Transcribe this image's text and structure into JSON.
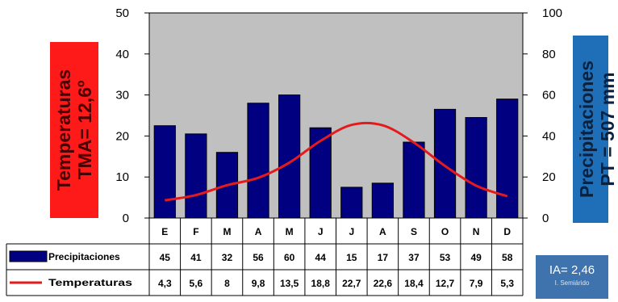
{
  "chart_data": {
    "type": "bar",
    "categories": [
      "E",
      "F",
      "M",
      "A",
      "M",
      "J",
      "J",
      "A",
      "S",
      "O",
      "N",
      "D"
    ],
    "series": [
      {
        "name": "Precipitaciones",
        "kind": "bar",
        "axis": "right",
        "values": [
          45,
          41,
          32,
          56,
          60,
          44,
          15,
          17,
          37,
          53,
          49,
          58
        ],
        "labels": [
          "45",
          "41",
          "32",
          "56",
          "60",
          "44",
          "15",
          "17",
          "37",
          "53",
          "49",
          "58"
        ],
        "color": "#000080"
      },
      {
        "name": "Temperaturas",
        "kind": "line",
        "axis": "left",
        "values": [
          4.3,
          5.6,
          8,
          9.8,
          13.5,
          18.8,
          22.7,
          22.6,
          18.4,
          12.7,
          7.9,
          5.3
        ],
        "labels": [
          "4,3",
          "5,6",
          "8",
          "9,8",
          "13,5",
          "18,8",
          "22,7",
          "22,6",
          "18,4",
          "12,7",
          "7,9",
          "5,3"
        ],
        "color": "#e41a1c"
      }
    ],
    "y_left": {
      "ylim": [
        0,
        50
      ],
      "ticks": [
        "0",
        "10",
        "20",
        "30",
        "40",
        "50"
      ]
    },
    "y_right": {
      "ylim": [
        0,
        100
      ],
      "ticks": [
        "0",
        "20",
        "40",
        "60",
        "80",
        "100"
      ]
    },
    "ylabel_left": {
      "line1": "Temperaturas",
      "line2": "TMA= 12,6º"
    },
    "ylabel_right": {
      "line1": "Precipitaciones",
      "line2": "PT = 507 mm"
    },
    "index_box": {
      "main": "IA= 2,46",
      "sub": "I. Semiárido"
    },
    "plot_background": "#c0c0c0",
    "grid": false,
    "legend": "bottom-table"
  }
}
